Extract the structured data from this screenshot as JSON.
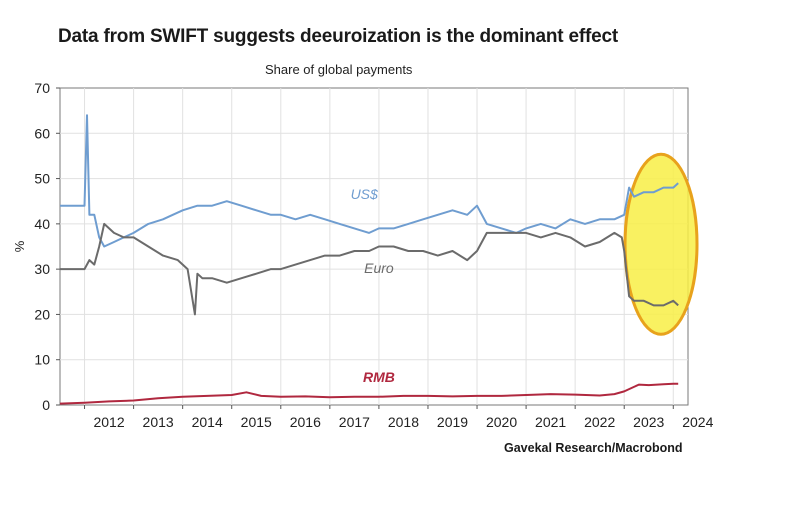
{
  "title": "Data from SWIFT suggests deeuroization is the dominant effect",
  "subtitle": "Share of global payments",
  "source": "Gavekal Research/Macrobond",
  "chart_data": {
    "type": "line",
    "ylabel": "%",
    "ylim": [
      0,
      70
    ],
    "yticks": [
      0,
      10,
      20,
      30,
      40,
      50,
      60,
      70
    ],
    "xlim": [
      2011.5,
      2024.3
    ],
    "xticks": [
      "2012",
      "2013",
      "2014",
      "2015",
      "2016",
      "2017",
      "2018",
      "2019",
      "2020",
      "2021",
      "2022",
      "2023",
      "2024"
    ],
    "grid": true,
    "series": [
      {
        "name": "US$",
        "color": "#6f9dd0",
        "x": [
          2011.5,
          2011.9,
          2012.0,
          2012.05,
          2012.1,
          2012.2,
          2012.3,
          2012.4,
          2012.6,
          2012.8,
          2013.0,
          2013.3,
          2013.6,
          2013.8,
          2014.0,
          2014.3,
          2014.6,
          2014.9,
          2015.2,
          2015.5,
          2015.8,
          2016.0,
          2016.3,
          2016.6,
          2016.9,
          2017.2,
          2017.5,
          2017.8,
          2018.0,
          2018.3,
          2018.6,
          2018.9,
          2019.2,
          2019.5,
          2019.8,
          2020.0,
          2020.2,
          2020.5,
          2020.8,
          2021.0,
          2021.3,
          2021.6,
          2021.9,
          2022.2,
          2022.5,
          2022.8,
          2023.0,
          2023.1,
          2023.2,
          2023.4,
          2023.6,
          2023.8,
          2024.0,
          2024.1
        ],
        "values": [
          44,
          44,
          44,
          64,
          42,
          42,
          37,
          35,
          36,
          37,
          38,
          40,
          41,
          42,
          43,
          44,
          44,
          45,
          44,
          43,
          42,
          42,
          41,
          42,
          41,
          40,
          39,
          38,
          39,
          39,
          40,
          41,
          42,
          43,
          42,
          44,
          40,
          39,
          38,
          39,
          40,
          39,
          41,
          40,
          41,
          41,
          42,
          48,
          46,
          47,
          47,
          48,
          48,
          49
        ]
      },
      {
        "name": "Euro",
        "color": "#6b6b6b",
        "x": [
          2011.5,
          2011.9,
          2012.0,
          2012.1,
          2012.2,
          2012.3,
          2012.4,
          2012.6,
          2012.8,
          2013.0,
          2013.3,
          2013.6,
          2013.9,
          2014.1,
          2014.25,
          2014.3,
          2014.4,
          2014.6,
          2014.9,
          2015.2,
          2015.5,
          2015.8,
          2016.0,
          2016.3,
          2016.6,
          2016.9,
          2017.2,
          2017.5,
          2017.8,
          2018.0,
          2018.3,
          2018.6,
          2018.9,
          2019.2,
          2019.5,
          2019.8,
          2020.0,
          2020.2,
          2020.5,
          2020.8,
          2021.0,
          2021.3,
          2021.6,
          2021.9,
          2022.2,
          2022.5,
          2022.8,
          2022.95,
          2023.0,
          2023.1,
          2023.2,
          2023.4,
          2023.6,
          2023.8,
          2024.0,
          2024.1
        ],
        "values": [
          30,
          30,
          30,
          32,
          31,
          35,
          40,
          38,
          37,
          37,
          35,
          33,
          32,
          30,
          20,
          29,
          28,
          28,
          27,
          28,
          29,
          30,
          30,
          31,
          32,
          33,
          33,
          34,
          34,
          35,
          35,
          34,
          34,
          33,
          34,
          32,
          34,
          38,
          38,
          38,
          38,
          37,
          38,
          37,
          35,
          36,
          38,
          37,
          34,
          24,
          23,
          23,
          22,
          22,
          23,
          22
        ]
      },
      {
        "name": "RMB",
        "color": "#b0283f",
        "x": [
          2011.5,
          2012.0,
          2012.5,
          2013.0,
          2013.5,
          2014.0,
          2014.5,
          2015.0,
          2015.3,
          2015.6,
          2016.0,
          2016.5,
          2017.0,
          2017.5,
          2018.0,
          2018.5,
          2019.0,
          2019.5,
          2020.0,
          2020.5,
          2021.0,
          2021.5,
          2022.0,
          2022.5,
          2022.8,
          2023.0,
          2023.3,
          2023.5,
          2023.8,
          2024.0,
          2024.1
        ],
        "values": [
          0.3,
          0.5,
          0.8,
          1.0,
          1.5,
          1.8,
          2.0,
          2.2,
          2.8,
          2.0,
          1.8,
          1.9,
          1.7,
          1.8,
          1.8,
          2.0,
          2.0,
          1.9,
          2.0,
          2.0,
          2.2,
          2.4,
          2.3,
          2.1,
          2.4,
          3.0,
          4.5,
          4.4,
          4.6,
          4.7,
          4.7
        ]
      }
    ],
    "series_labels": [
      "US$",
      "Euro",
      "RMB"
    ],
    "highlight_colors": {
      "fill": "#f8ee45",
      "stroke": "#e8a21c"
    }
  }
}
